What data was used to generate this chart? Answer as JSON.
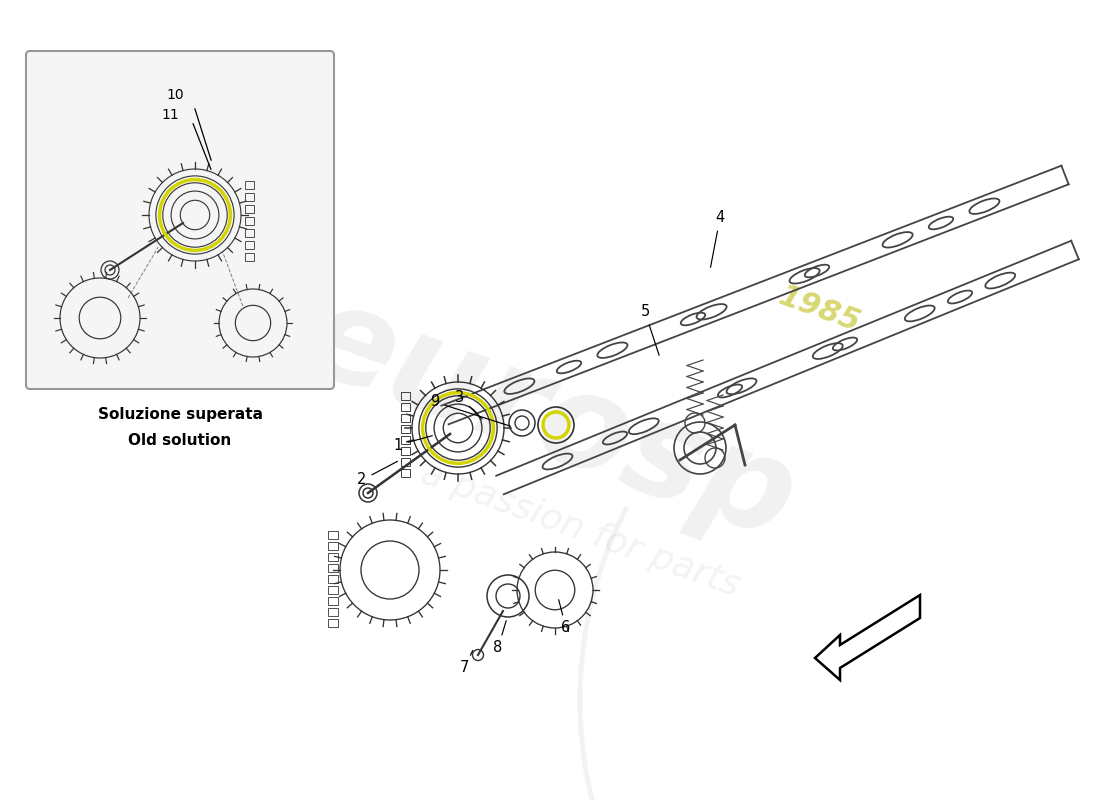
{
  "bg_color": "#ffffff",
  "box_label_line1": "Soluzione superata",
  "box_label_line2": "Old solution",
  "line_color": "#1a1a1a",
  "gear_color": "#333333",
  "shaft_color": "#444444",
  "highlight_yellow": "#d4d400",
  "watermark_color": "#c8c8c8",
  "watermark_text1": "eurosp",
  "watermark_text2": "a passion for parts",
  "watermark_year": "1985",
  "figsize": [
    11.0,
    8.0
  ],
  "dpi": 100
}
